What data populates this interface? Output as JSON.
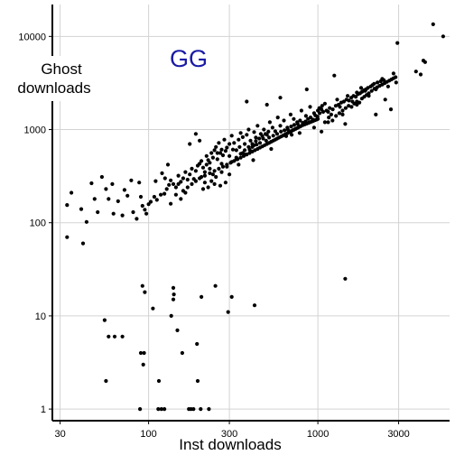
{
  "chart_data": {
    "type": "scatter",
    "title": "",
    "annotation": "GG",
    "annotation_color": "#1a1aa6",
    "xlabel": "Inst downloads",
    "ylabel": "Ghost downloads",
    "xscale": "log",
    "yscale": "log",
    "xlim": [
      27,
      6000
    ],
    "ylim": [
      0.75,
      22000
    ],
    "grid": true,
    "legend": "none",
    "point_color": "#000000",
    "grid_color": "#d3d3d3",
    "xticks": [
      {
        "v": 30,
        "label": "30"
      },
      {
        "v": 100,
        "label": "100"
      },
      {
        "v": 300,
        "label": "300"
      },
      {
        "v": 1000,
        "label": "1000"
      },
      {
        "v": 3000,
        "label": "3000"
      }
    ],
    "yticks": [
      {
        "v": 1,
        "label": "1"
      },
      {
        "v": 10,
        "label": "10"
      },
      {
        "v": 100,
        "label": "100"
      },
      {
        "v": 1000,
        "label": "1000"
      },
      {
        "v": 10000,
        "label": "10000"
      }
    ],
    "points": [
      [
        33,
        70
      ],
      [
        41,
        60
      ],
      [
        55,
        9
      ],
      [
        56,
        2
      ],
      [
        58,
        6
      ],
      [
        63,
        6
      ],
      [
        70,
        6
      ],
      [
        89,
        1
      ],
      [
        90,
        4
      ],
      [
        93,
        3
      ],
      [
        94,
        4
      ],
      [
        92,
        21
      ],
      [
        95,
        18
      ],
      [
        106,
        12
      ],
      [
        115,
        2
      ],
      [
        114,
        1
      ],
      [
        119,
        1
      ],
      [
        124,
        1
      ],
      [
        136,
        10
      ],
      [
        140,
        20
      ],
      [
        141,
        17
      ],
      [
        140,
        15
      ],
      [
        148,
        7
      ],
      [
        158,
        4
      ],
      [
        173,
        1
      ],
      [
        178,
        1
      ],
      [
        184,
        1
      ],
      [
        193,
        5
      ],
      [
        195,
        2
      ],
      [
        203,
        1
      ],
      [
        227,
        1
      ],
      [
        205,
        16
      ],
      [
        248,
        21
      ],
      [
        295,
        11
      ],
      [
        310,
        16
      ],
      [
        423,
        13
      ],
      [
        1450,
        25
      ],
      [
        33,
        155
      ],
      [
        35,
        210
      ],
      [
        40,
        140
      ],
      [
        43,
        102
      ],
      [
        46,
        265
      ],
      [
        48,
        180
      ],
      [
        50,
        130
      ],
      [
        53,
        310
      ],
      [
        56,
        230
      ],
      [
        58,
        180
      ],
      [
        61,
        260
      ],
      [
        62,
        125
      ],
      [
        66,
        170
      ],
      [
        70,
        120
      ],
      [
        72,
        225
      ],
      [
        75,
        195
      ],
      [
        79,
        285
      ],
      [
        81,
        130
      ],
      [
        85,
        110
      ],
      [
        88,
        270
      ],
      [
        90,
        190
      ],
      [
        92,
        152
      ],
      [
        95,
        138
      ],
      [
        97,
        125
      ],
      [
        100,
        158
      ],
      [
        103,
        168
      ],
      [
        108,
        190
      ],
      [
        112,
        176
      ],
      [
        118,
        200
      ],
      [
        124,
        205
      ],
      [
        128,
        230
      ],
      [
        132,
        255
      ],
      [
        135,
        285
      ],
      [
        140,
        260
      ],
      [
        145,
        240
      ],
      [
        150,
        320
      ],
      [
        155,
        275
      ],
      [
        160,
        300
      ],
      [
        165,
        350
      ],
      [
        170,
        290
      ],
      [
        175,
        330
      ],
      [
        180,
        380
      ],
      [
        185,
        295
      ],
      [
        190,
        360
      ],
      [
        195,
        410
      ],
      [
        200,
        430
      ],
      [
        205,
        460
      ],
      [
        210,
        390
      ],
      [
        215,
        350
      ],
      [
        220,
        520
      ],
      [
        225,
        470
      ],
      [
        230,
        440
      ],
      [
        235,
        560
      ],
      [
        240,
        500
      ],
      [
        245,
        600
      ],
      [
        250,
        650
      ],
      [
        255,
        480
      ],
      [
        260,
        720
      ],
      [
        265,
        560
      ],
      [
        270,
        610
      ],
      [
        275,
        530
      ],
      [
        280,
        780
      ],
      [
        290,
        640
      ],
      [
        300,
        700
      ],
      [
        310,
        860
      ],
      [
        320,
        720
      ],
      [
        330,
        600
      ],
      [
        340,
        780
      ],
      [
        350,
        920
      ],
      [
        360,
        830
      ],
      [
        370,
        700
      ],
      [
        380,
        880
      ],
      [
        390,
        1000
      ],
      [
        400,
        760
      ],
      [
        410,
        650
      ],
      [
        420,
        940
      ],
      [
        430,
        820
      ],
      [
        440,
        1100
      ],
      [
        460,
        900
      ],
      [
        480,
        1000
      ],
      [
        500,
        880
      ],
      [
        520,
        1200
      ],
      [
        540,
        1050
      ],
      [
        560,
        960
      ],
      [
        580,
        1350
      ],
      [
        600,
        1100
      ],
      [
        630,
        1250
      ],
      [
        660,
        1050
      ],
      [
        690,
        1450
      ],
      [
        720,
        1300
      ],
      [
        760,
        1150
      ],
      [
        800,
        1600
      ],
      [
        850,
        1400
      ],
      [
        900,
        1750
      ],
      [
        950,
        1500
      ],
      [
        1000,
        1300
      ],
      [
        1050,
        1650
      ],
      [
        1100,
        1900
      ],
      [
        1150,
        1550
      ],
      [
        1200,
        1450
      ],
      [
        1300,
        2100
      ],
      [
        1350,
        1750
      ],
      [
        1400,
        1600
      ],
      [
        1500,
        2300
      ],
      [
        1600,
        2000
      ],
      [
        1700,
        2500
      ],
      [
        1800,
        2800
      ],
      [
        1900,
        2600
      ],
      [
        2000,
        2300
      ],
      [
        2100,
        3000
      ],
      [
        2200,
        2700
      ],
      [
        2400,
        3500
      ],
      [
        2600,
        2900
      ],
      [
        2800,
        4000
      ],
      [
        2900,
        3200
      ],
      [
        2950,
        8500
      ],
      [
        3800,
        4200
      ],
      [
        4050,
        3900
      ],
      [
        4200,
        5500
      ],
      [
        4300,
        5300
      ],
      [
        4800,
        13500
      ],
      [
        5500,
        10000
      ],
      [
        110,
        280
      ],
      [
        120,
        340
      ],
      [
        150,
        260
      ],
      [
        165,
        210
      ],
      [
        200,
        760
      ],
      [
        220,
        420
      ],
      [
        240,
        330
      ],
      [
        270,
        430
      ],
      [
        300,
        520
      ],
      [
        330,
        480
      ],
      [
        360,
        560
      ],
      [
        420,
        680
      ],
      [
        500,
        1850
      ],
      [
        530,
        620
      ],
      [
        600,
        2200
      ],
      [
        650,
        850
      ],
      [
        700,
        880
      ],
      [
        780,
        920
      ],
      [
        860,
        2700
      ],
      [
        950,
        1050
      ],
      [
        1050,
        950
      ],
      [
        1150,
        1200
      ],
      [
        1250,
        3800
      ],
      [
        1450,
        1150
      ],
      [
        1700,
        1850
      ],
      [
        2200,
        1450
      ],
      [
        2500,
        2100
      ],
      [
        2700,
        1650
      ],
      [
        300,
        330
      ],
      [
        340,
        420
      ],
      [
        380,
        2000
      ],
      [
        190,
        900
      ],
      [
        175,
        700
      ],
      [
        130,
        420
      ],
      [
        125,
        300
      ],
      [
        255,
        560
      ],
      [
        285,
        590
      ],
      [
        315,
        610
      ],
      [
        345,
        650
      ],
      [
        375,
        540
      ],
      [
        395,
        610
      ],
      [
        415,
        470
      ],
      [
        435,
        690
      ],
      [
        455,
        720
      ],
      [
        475,
        800
      ],
      [
        495,
        760
      ],
      [
        515,
        820
      ],
      [
        545,
        860
      ],
      [
        575,
        900
      ],
      [
        605,
        950
      ],
      [
        635,
        980
      ],
      [
        665,
        1000
      ],
      [
        695,
        1080
      ],
      [
        725,
        1120
      ],
      [
        755,
        1200
      ],
      [
        785,
        1250
      ],
      [
        815,
        1180
      ],
      [
        845,
        1220
      ],
      [
        875,
        1300
      ],
      [
        905,
        1350
      ],
      [
        935,
        1280
      ],
      [
        965,
        1420
      ],
      [
        995,
        1380
      ],
      [
        1025,
        1500
      ],
      [
        1075,
        1550
      ],
      [
        1125,
        1600
      ],
      [
        1175,
        1700
      ],
      [
        1225,
        1650
      ],
      [
        1275,
        1800
      ],
      [
        1325,
        1850
      ],
      [
        1375,
        1950
      ],
      [
        1425,
        2000
      ],
      [
        1475,
        2100
      ],
      [
        1525,
        2050
      ],
      [
        1575,
        2200
      ],
      [
        1625,
        2300
      ],
      [
        1675,
        2250
      ],
      [
        1725,
        2400
      ],
      [
        1775,
        2450
      ],
      [
        1825,
        2550
      ],
      [
        1875,
        2650
      ],
      [
        1925,
        2700
      ],
      [
        1975,
        2800
      ],
      [
        2050,
        2900
      ],
      [
        2150,
        3100
      ],
      [
        2250,
        3200
      ],
      [
        2350,
        3300
      ],
      [
        2450,
        3400
      ],
      [
        210,
        230
      ],
      [
        230,
        380
      ],
      [
        250,
        310
      ],
      [
        270,
        350
      ],
      [
        290,
        400
      ],
      [
        310,
        450
      ],
      [
        330,
        500
      ],
      [
        350,
        550
      ],
      [
        370,
        600
      ],
      [
        390,
        650
      ],
      [
        410,
        700
      ],
      [
        430,
        750
      ],
      [
        450,
        800
      ],
      [
        470,
        850
      ],
      [
        490,
        900
      ],
      [
        510,
        950
      ],
      [
        265,
        250
      ],
      [
        285,
        270
      ],
      [
        205,
        310
      ],
      [
        215,
        270
      ],
      [
        225,
        240
      ],
      [
        235,
        280
      ],
      [
        245,
        260
      ],
      [
        155,
        180
      ],
      [
        145,
        200
      ],
      [
        135,
        160
      ],
      [
        160,
        220
      ],
      [
        170,
        240
      ],
      [
        180,
        260
      ],
      [
        190,
        280
      ],
      [
        200,
        300
      ],
      [
        215,
        320
      ],
      [
        230,
        340
      ],
      [
        245,
        360
      ],
      [
        260,
        380
      ],
      [
        275,
        400
      ],
      [
        290,
        420
      ],
      [
        305,
        440
      ],
      [
        320,
        460
      ],
      [
        335,
        480
      ],
      [
        350,
        500
      ],
      [
        365,
        520
      ],
      [
        380,
        540
      ],
      [
        395,
        560
      ],
      [
        410,
        580
      ],
      [
        425,
        600
      ],
      [
        440,
        620
      ],
      [
        455,
        640
      ],
      [
        470,
        660
      ],
      [
        485,
        680
      ],
      [
        500,
        700
      ],
      [
        515,
        720
      ],
      [
        530,
        740
      ],
      [
        545,
        760
      ],
      [
        560,
        780
      ],
      [
        575,
        800
      ],
      [
        590,
        820
      ],
      [
        605,
        840
      ],
      [
        620,
        860
      ],
      [
        635,
        880
      ],
      [
        650,
        900
      ],
      [
        665,
        920
      ],
      [
        680,
        940
      ],
      [
        695,
        960
      ],
      [
        710,
        980
      ],
      [
        725,
        1000
      ],
      [
        740,
        1020
      ],
      [
        755,
        1040
      ],
      [
        770,
        1060
      ],
      [
        785,
        1080
      ],
      [
        800,
        1100
      ],
      [
        820,
        1120
      ],
      [
        840,
        1140
      ],
      [
        860,
        1160
      ],
      [
        880,
        1180
      ],
      [
        900,
        1200
      ],
      [
        920,
        1220
      ],
      [
        940,
        1240
      ],
      [
        960,
        1260
      ],
      [
        980,
        1280
      ],
      [
        1000,
        1600
      ],
      [
        1020,
        1700
      ],
      [
        1060,
        1800
      ],
      [
        1100,
        1200
      ],
      [
        1160,
        1350
      ],
      [
        1220,
        1250
      ],
      [
        1280,
        1400
      ],
      [
        1340,
        1500
      ],
      [
        1400,
        1450
      ],
      [
        1460,
        1700
      ],
      [
        1520,
        1800
      ],
      [
        1580,
        1750
      ],
      [
        1640,
        1900
      ],
      [
        1700,
        2000
      ],
      [
        1760,
        1950
      ],
      [
        1820,
        2150
      ],
      [
        1880,
        2250
      ],
      [
        1940,
        2350
      ],
      [
        2000,
        2450
      ],
      [
        2080,
        2600
      ],
      [
        2160,
        2750
      ],
      [
        2240,
        2850
      ],
      [
        2320,
        2950
      ],
      [
        2400,
        3050
      ],
      [
        2480,
        3150
      ],
      [
        2560,
        3250
      ],
      [
        2640,
        3350
      ],
      [
        2720,
        3450
      ],
      [
        2800,
        3550
      ],
      [
        2880,
        3650
      ]
    ]
  }
}
